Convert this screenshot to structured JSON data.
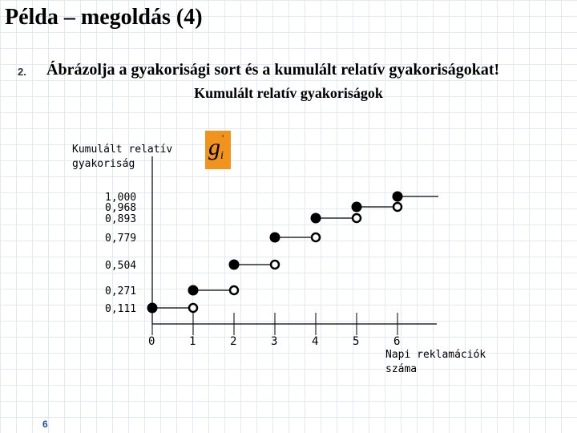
{
  "slide": {
    "title": "Példa – megoldás (4)",
    "item_number": "2.",
    "instruction": "Ábrázolja a gyakorisági sort és a kumulált relatív gyakoriságokat!",
    "page_number": "6"
  },
  "formula_symbol": {
    "base": "g",
    "prime": "'",
    "subscript": "i"
  },
  "chart_data": {
    "type": "step",
    "title": "Kumulált relatív gyakoriságok",
    "ylabel_lines": [
      "Kumulált relatív",
      "gyakoriság"
    ],
    "xlabel_lines": [
      "Napi reklamációk",
      "száma"
    ],
    "x_ticks": [
      0,
      1,
      2,
      3,
      4,
      5,
      6
    ],
    "x_tick_labels": [
      "0",
      "1",
      "2",
      "3",
      "4",
      "5",
      "6"
    ],
    "y_tick_labels": [
      "1,000",
      "0,968",
      "0,893",
      "0,779",
      "0,504",
      "0,271",
      "0,111"
    ],
    "y_ticks": [
      1.0,
      0.968,
      0.893,
      0.779,
      0.504,
      0.271,
      0.111
    ],
    "steps": [
      {
        "x_from": 0,
        "x_to": 1,
        "y": 0.111
      },
      {
        "x_from": 1,
        "x_to": 2,
        "y": 0.271
      },
      {
        "x_from": 2,
        "x_to": 3,
        "y": 0.504
      },
      {
        "x_from": 3,
        "x_to": 4,
        "y": 0.779
      },
      {
        "x_from": 4,
        "x_to": 5,
        "y": 0.893
      },
      {
        "x_from": 5,
        "x_to": 6,
        "y": 0.968
      },
      {
        "x_from": 6,
        "x_to": 7,
        "y": 1.0
      }
    ],
    "open_points_y": [
      0.111,
      0.271,
      0.504,
      0.779,
      0.893,
      0.968
    ],
    "xlim": [
      0,
      7
    ],
    "ylim": [
      0,
      1.1
    ]
  }
}
